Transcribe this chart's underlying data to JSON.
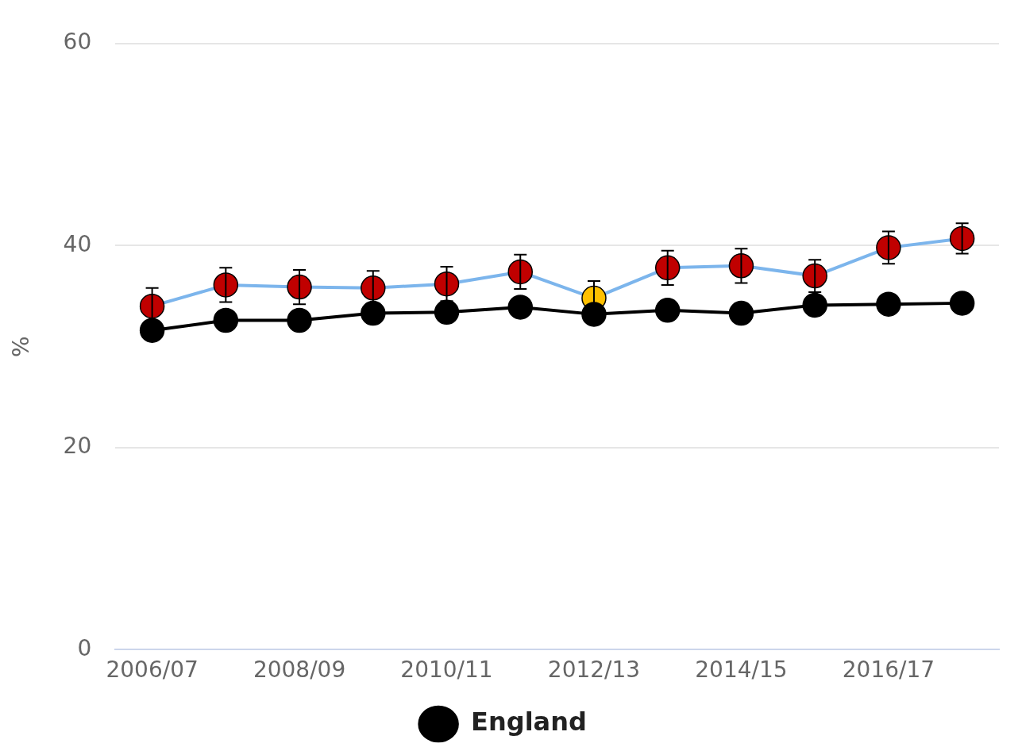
{
  "chart_data": {
    "type": "line",
    "ylabel": "%",
    "categories": [
      "2006/07",
      null,
      "2008/09",
      null,
      "2010/11",
      null,
      "2012/13",
      null,
      "2014/15",
      null,
      "2016/17",
      null
    ],
    "ylim": [
      0,
      60
    ],
    "yticks": [
      0,
      20,
      40,
      60
    ],
    "grid": "y",
    "legend": "bottom",
    "marker": "circle",
    "series": [
      {
        "color": "#7cb5ec",
        "colors": [
          "#c00000",
          "#c00000",
          "#c00000",
          "#c00000",
          "#c00000",
          "#c00000",
          "#ffc000",
          "#c00000",
          "#c00000",
          "#c00000",
          "#c00000",
          "#c00000"
        ],
        "values": [
          34.0,
          36.1,
          35.9,
          35.8,
          36.2,
          37.4,
          34.8,
          37.8,
          38.0,
          37.0,
          39.8,
          40.7
        ],
        "errors": [
          1.8,
          1.7,
          1.7,
          1.7,
          1.7,
          1.7,
          1.7,
          1.7,
          1.7,
          1.6,
          1.6,
          1.5
        ]
      },
      {
        "name": "England",
        "color": "#000000",
        "values": [
          31.6,
          32.6,
          32.6,
          33.3,
          33.4,
          33.9,
          33.2,
          33.6,
          33.3,
          34.1,
          34.2,
          34.3
        ]
      }
    ]
  }
}
